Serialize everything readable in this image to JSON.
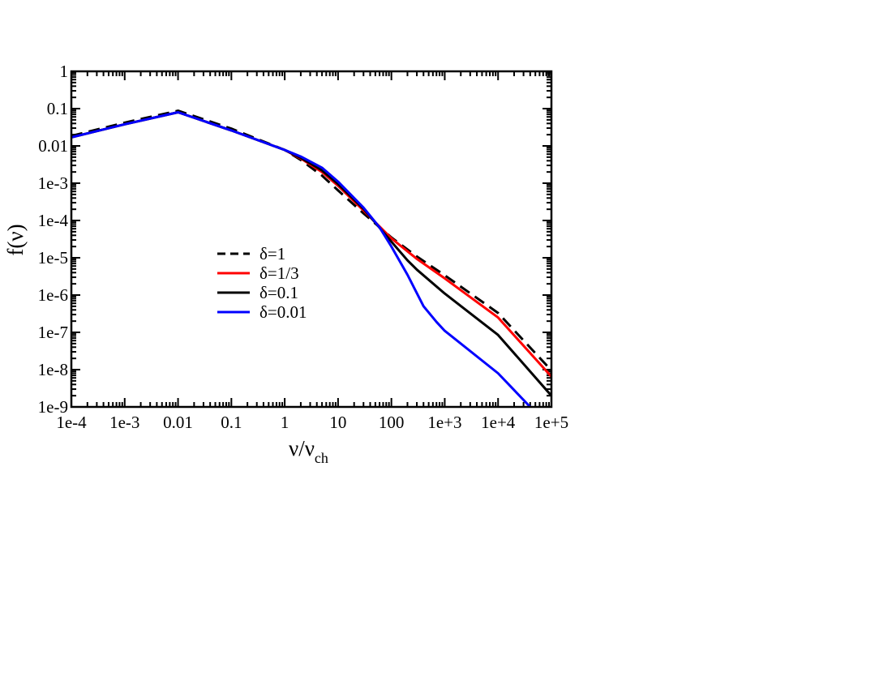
{
  "chart_data": {
    "type": "line",
    "xscale": "log",
    "yscale": "log",
    "xlim": [
      0.0001,
      100000
    ],
    "ylim": [
      1e-09,
      1
    ],
    "x_ticks": [
      {
        "value": 0.0001,
        "label": "1e-4"
      },
      {
        "value": 0.001,
        "label": "1e-3"
      },
      {
        "value": 0.01,
        "label": "0.01"
      },
      {
        "value": 0.1,
        "label": "0.1"
      },
      {
        "value": 1,
        "label": "1"
      },
      {
        "value": 10,
        "label": "10"
      },
      {
        "value": 100,
        "label": "100"
      },
      {
        "value": 1000,
        "label": "1e+3"
      },
      {
        "value": 10000,
        "label": "1e+4"
      },
      {
        "value": 100000,
        "label": "1e+5"
      }
    ],
    "y_ticks": [
      {
        "value": 1,
        "label": "1"
      },
      {
        "value": 0.1,
        "label": "0.1"
      },
      {
        "value": 0.01,
        "label": "0.01"
      },
      {
        "value": 0.001,
        "label": "1e-3"
      },
      {
        "value": 0.0001,
        "label": "1e-4"
      },
      {
        "value": 1e-05,
        "label": "1e-5"
      },
      {
        "value": 1e-06,
        "label": "1e-6"
      },
      {
        "value": 1e-07,
        "label": "1e-7"
      },
      {
        "value": 1e-08,
        "label": "1e-8"
      },
      {
        "value": 1e-09,
        "label": "1e-9"
      }
    ],
    "xlabel": {
      "main": "ν/ν",
      "sub": "ch"
    },
    "ylabel": "f(ν)",
    "grid": false,
    "legend_position": "center-left",
    "series": [
      {
        "name": "δ=1",
        "color": "#000000",
        "dash": "dashed",
        "x": [
          0.0001,
          0.001,
          0.01,
          0.1,
          1,
          2,
          5,
          10,
          30,
          100,
          300,
          1000,
          10000,
          100000
        ],
        "y": [
          0.0185,
          0.042,
          0.088,
          0.029,
          0.0078,
          0.0042,
          0.0016,
          0.00064,
          0.000155,
          3.5e-05,
          1.08e-05,
          3.4e-06,
          3.3e-07,
          9.5e-09
        ]
      },
      {
        "name": "δ=1/3",
        "color": "#ff0000",
        "dash": "solid",
        "x": [
          0.0001,
          0.001,
          0.01,
          0.1,
          1,
          2,
          5,
          10,
          30,
          100,
          300,
          1000,
          10000,
          100000
        ],
        "y": [
          0.017,
          0.038,
          0.08,
          0.026,
          0.0078,
          0.0046,
          0.002,
          0.00085,
          0.000185,
          3.3e-05,
          9.3e-06,
          2.8e-06,
          2.5e-07,
          6.5e-09
        ]
      },
      {
        "name": "δ=0.1",
        "color": "#000000",
        "dash": "solid",
        "x": [
          0.0001,
          0.001,
          0.01,
          0.1,
          1,
          2,
          5,
          10,
          30,
          100,
          200,
          300,
          1000,
          10000,
          100000
        ],
        "y": [
          0.017,
          0.038,
          0.08,
          0.026,
          0.0078,
          0.0048,
          0.0022,
          0.00095,
          0.000205,
          2.7e-05,
          8.5e-06,
          4.8e-06,
          1.1e-06,
          8.5e-08,
          2e-09
        ]
      },
      {
        "name": "δ=0.01",
        "color": "#0000ff",
        "dash": "solid",
        "x": [
          0.0001,
          0.001,
          0.01,
          0.1,
          1,
          2,
          5,
          10,
          30,
          60,
          100,
          200,
          400,
          700,
          1000,
          10000,
          40000
        ],
        "y": [
          0.017,
          0.038,
          0.08,
          0.026,
          0.0078,
          0.0052,
          0.0026,
          0.0011,
          0.00022,
          6.5e-05,
          2e-05,
          3.5e-06,
          5e-07,
          1.9e-07,
          1.1e-07,
          8e-09,
          1e-09
        ]
      }
    ]
  }
}
